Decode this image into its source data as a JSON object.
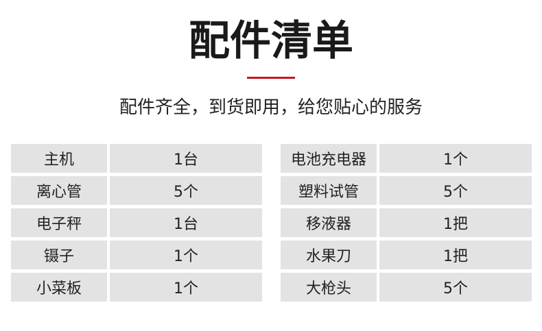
{
  "title": "配件清单",
  "subtitle": "配件齐全，到货即用，给您贴心的服务",
  "accent_color": "#c8161d",
  "left_table": [
    {
      "item": "主机",
      "qty": "1台"
    },
    {
      "item": "离心管",
      "qty": "5个"
    },
    {
      "item": "电子秤",
      "qty": "1台"
    },
    {
      "item": "镊子",
      "qty": "1个"
    },
    {
      "item": "小菜板",
      "qty": "1个"
    }
  ],
  "right_table": [
    {
      "item": "电池充电器",
      "qty": "1个"
    },
    {
      "item": "塑料试管",
      "qty": "5个"
    },
    {
      "item": "移液器",
      "qty": "1把"
    },
    {
      "item": "水果刀",
      "qty": "1把"
    },
    {
      "item": "大枪头",
      "qty": "5个"
    }
  ]
}
